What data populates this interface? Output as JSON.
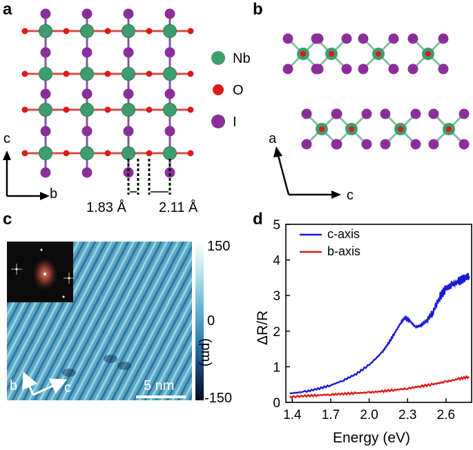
{
  "panels": {
    "a": {
      "label": "a",
      "axes": {
        "vertical": "c",
        "horizontal": "b"
      },
      "legend": [
        {
          "name": "Nb",
          "color": "#3f9c6e"
        },
        {
          "name": "O",
          "color": "#e01818"
        },
        {
          "name": "I",
          "color": "#8a2f9a"
        }
      ],
      "distances": [
        "1.83 Å",
        "2.11 Å"
      ]
    },
    "b": {
      "label": "b",
      "axes": {
        "vertical": "a",
        "horizontal": "c"
      }
    },
    "c": {
      "label": "c",
      "scale_bar": "5 nm",
      "colorbar": {
        "max": "150",
        "zero": "0",
        "min": "-150",
        "unit": "(pm)"
      },
      "direction_labels": {
        "b": "b",
        "c": "c"
      }
    },
    "d": {
      "label": "d"
    }
  },
  "chart_data": {
    "type": "line",
    "title": "",
    "xlabel": "Energy (eV)",
    "ylabel": "ΔR/R",
    "xlim": [
      1.35,
      2.8
    ],
    "ylim": [
      0,
      5
    ],
    "xticks": [
      "1.4",
      "1.7",
      "2.0",
      "2.3",
      "2.6"
    ],
    "yticks": [
      "0",
      "1",
      "2",
      "3",
      "4",
      "5"
    ],
    "legend_position": "top-left",
    "series": [
      {
        "name": "c-axis",
        "color": "#1a1ad6",
        "x": [
          1.38,
          1.5,
          1.6,
          1.7,
          1.8,
          1.9,
          2.0,
          2.1,
          2.15,
          2.2,
          2.25,
          2.28,
          2.32,
          2.36,
          2.4,
          2.45,
          2.5,
          2.55,
          2.6,
          2.65,
          2.7,
          2.75,
          2.78
        ],
        "y": [
          0.25,
          0.3,
          0.38,
          0.48,
          0.62,
          0.8,
          1.05,
          1.4,
          1.65,
          1.95,
          2.25,
          2.38,
          2.28,
          2.12,
          2.15,
          2.3,
          2.55,
          2.95,
          3.2,
          3.3,
          3.4,
          3.5,
          3.55
        ]
      },
      {
        "name": "b-axis",
        "color": "#e01818",
        "x": [
          1.38,
          1.5,
          1.6,
          1.7,
          1.8,
          1.9,
          2.0,
          2.1,
          2.2,
          2.3,
          2.4,
          2.5,
          2.6,
          2.7,
          2.78
        ],
        "y": [
          0.15,
          0.18,
          0.2,
          0.22,
          0.24,
          0.26,
          0.28,
          0.31,
          0.35,
          0.39,
          0.45,
          0.51,
          0.58,
          0.66,
          0.72
        ]
      }
    ]
  }
}
